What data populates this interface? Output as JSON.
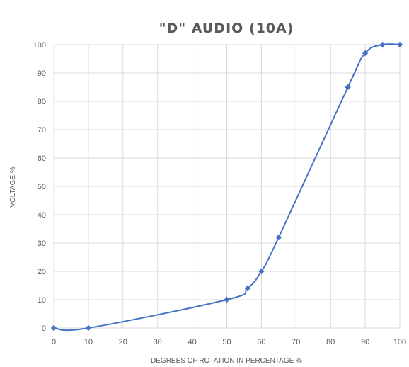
{
  "chart_data": {
    "type": "line",
    "title": "\"D\" AUDIO (10A)",
    "xlabel": "DEGREES OF ROTATION IN PERCENTAGE %",
    "ylabel": "VOLTAGE %",
    "xlim": [
      0,
      100
    ],
    "ylim": [
      0,
      100
    ],
    "xticks": [
      "0",
      "10",
      "20",
      "30",
      "40",
      "50",
      "60",
      "70",
      "80",
      "90",
      "100"
    ],
    "yticks": [
      "0",
      "10",
      "20",
      "30",
      "40",
      "50",
      "60",
      "70",
      "80",
      "90",
      "100"
    ],
    "grid": true,
    "legend": "none",
    "series": [
      {
        "color": "#4472c4",
        "marker": "diamond",
        "smooth": true,
        "x": [
          0,
          10,
          50,
          56,
          60,
          65,
          85,
          90,
          95,
          100
        ],
        "y": [
          0,
          0,
          10,
          14,
          20,
          32,
          85,
          97,
          100,
          100
        ]
      }
    ]
  }
}
